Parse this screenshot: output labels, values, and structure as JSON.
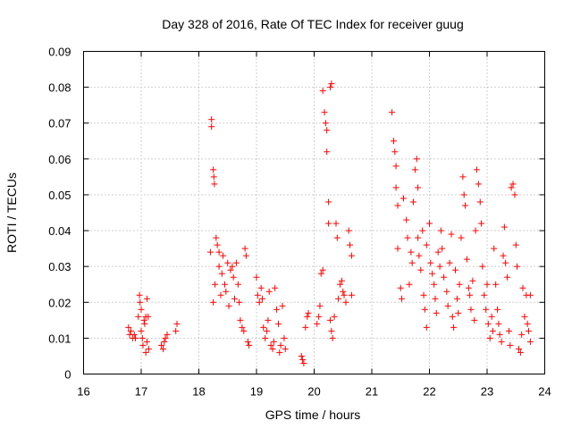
{
  "chart_data": {
    "type": "scatter",
    "title": "Day 328 of 2016, Rate Of TEC Index for receiver guug",
    "xlabel": "GPS time / hours",
    "ylabel": "ROTI / TECUs",
    "xlim": [
      16,
      24
    ],
    "ylim": [
      0,
      0.09
    ],
    "xticks": [
      16,
      17,
      18,
      19,
      20,
      21,
      22,
      23,
      24
    ],
    "xtick_labels": [
      "16",
      "17",
      "18",
      "19",
      "20",
      "21",
      "22",
      "23",
      "24"
    ],
    "yticks": [
      0,
      0.01,
      0.02,
      0.03,
      0.04,
      0.05,
      0.06,
      0.07,
      0.08,
      0.09
    ],
    "ytick_labels": [
      "0",
      "0.01",
      "0.02",
      "0.03",
      "0.04",
      "0.05",
      "0.06",
      "0.07",
      "0.08",
      "0.09"
    ],
    "grid": true,
    "marker": "+",
    "color": "#ff0000",
    "series": [
      {
        "name": "ROTI",
        "points": [
          [
            16.78,
            0.013
          ],
          [
            16.8,
            0.011
          ],
          [
            16.82,
            0.012
          ],
          [
            16.85,
            0.01
          ],
          [
            16.88,
            0.011
          ],
          [
            16.9,
            0.01
          ],
          [
            16.95,
            0.016
          ],
          [
            16.97,
            0.022
          ],
          [
            16.98,
            0.02
          ],
          [
            17.0,
            0.018
          ],
          [
            17.0,
            0.012
          ],
          [
            17.02,
            0.01
          ],
          [
            17.03,
            0.008
          ],
          [
            17.05,
            0.015
          ],
          [
            17.06,
            0.014
          ],
          [
            17.08,
            0.016
          ],
          [
            17.08,
            0.006
          ],
          [
            17.1,
            0.009
          ],
          [
            17.1,
            0.021
          ],
          [
            17.12,
            0.016
          ],
          [
            17.13,
            0.007
          ],
          [
            17.35,
            0.008
          ],
          [
            17.38,
            0.007
          ],
          [
            17.4,
            0.009
          ],
          [
            17.42,
            0.01
          ],
          [
            17.45,
            0.011
          ],
          [
            17.6,
            0.012
          ],
          [
            17.62,
            0.014
          ],
          [
            18.2,
            0.034
          ],
          [
            18.22,
            0.071
          ],
          [
            18.22,
            0.069
          ],
          [
            18.25,
            0.057
          ],
          [
            18.26,
            0.055
          ],
          [
            18.27,
            0.053
          ],
          [
            18.25,
            0.02
          ],
          [
            18.28,
            0.025
          ],
          [
            18.3,
            0.038
          ],
          [
            18.32,
            0.036
          ],
          [
            18.35,
            0.03
          ],
          [
            18.35,
            0.034
          ],
          [
            18.38,
            0.022
          ],
          [
            18.4,
            0.028
          ],
          [
            18.42,
            0.033
          ],
          [
            18.45,
            0.025
          ],
          [
            18.47,
            0.023
          ],
          [
            18.5,
            0.031
          ],
          [
            18.52,
            0.019
          ],
          [
            18.55,
            0.029
          ],
          [
            18.58,
            0.03
          ],
          [
            18.6,
            0.027
          ],
          [
            18.62,
            0.021
          ],
          [
            18.65,
            0.031
          ],
          [
            18.68,
            0.025
          ],
          [
            18.7,
            0.02
          ],
          [
            18.72,
            0.015
          ],
          [
            18.75,
            0.013
          ],
          [
            18.78,
            0.012
          ],
          [
            18.8,
            0.035
          ],
          [
            18.82,
            0.033
          ],
          [
            18.85,
            0.009
          ],
          [
            18.87,
            0.008
          ],
          [
            19.0,
            0.027
          ],
          [
            19.02,
            0.022
          ],
          [
            19.05,
            0.02
          ],
          [
            19.08,
            0.024
          ],
          [
            19.1,
            0.021
          ],
          [
            19.12,
            0.013
          ],
          [
            19.15,
            0.01
          ],
          [
            19.18,
            0.012
          ],
          [
            19.2,
            0.015
          ],
          [
            19.22,
            0.023
          ],
          [
            19.25,
            0.008
          ],
          [
            19.28,
            0.007
          ],
          [
            19.3,
            0.009
          ],
          [
            19.32,
            0.024
          ],
          [
            19.35,
            0.018
          ],
          [
            19.38,
            0.014
          ],
          [
            19.4,
            0.006
          ],
          [
            19.42,
            0.008
          ],
          [
            19.45,
            0.019
          ],
          [
            19.48,
            0.01
          ],
          [
            19.5,
            0.007
          ],
          [
            19.78,
            0.005
          ],
          [
            19.8,
            0.004
          ],
          [
            19.82,
            0.003
          ],
          [
            19.85,
            0.013
          ],
          [
            19.88,
            0.016
          ],
          [
            19.9,
            0.017
          ],
          [
            20.05,
            0.014
          ],
          [
            20.08,
            0.016
          ],
          [
            20.1,
            0.019
          ],
          [
            20.12,
            0.028
          ],
          [
            20.15,
            0.029
          ],
          [
            20.15,
            0.079
          ],
          [
            20.18,
            0.073
          ],
          [
            20.2,
            0.07
          ],
          [
            20.22,
            0.068
          ],
          [
            20.22,
            0.062
          ],
          [
            20.25,
            0.048
          ],
          [
            20.25,
            0.042
          ],
          [
            20.28,
            0.08
          ],
          [
            20.3,
            0.081
          ],
          [
            20.28,
            0.015
          ],
          [
            20.3,
            0.012
          ],
          [
            20.32,
            0.01
          ],
          [
            20.35,
            0.016
          ],
          [
            20.38,
            0.042
          ],
          [
            20.4,
            0.038
          ],
          [
            20.42,
            0.021
          ],
          [
            20.45,
            0.025
          ],
          [
            20.48,
            0.026
          ],
          [
            20.5,
            0.023
          ],
          [
            20.52,
            0.022
          ],
          [
            20.55,
            0.02
          ],
          [
            20.6,
            0.04
          ],
          [
            20.62,
            0.036
          ],
          [
            20.65,
            0.033
          ],
          [
            20.65,
            0.022
          ],
          [
            21.35,
            0.073
          ],
          [
            21.38,
            0.065
          ],
          [
            21.4,
            0.062
          ],
          [
            21.42,
            0.058
          ],
          [
            21.42,
            0.052
          ],
          [
            21.45,
            0.047
          ],
          [
            21.45,
            0.035
          ],
          [
            21.5,
            0.024
          ],
          [
            21.52,
            0.021
          ],
          [
            21.55,
            0.049
          ],
          [
            21.6,
            0.043
          ],
          [
            21.62,
            0.038
          ],
          [
            21.65,
            0.025
          ],
          [
            21.68,
            0.034
          ],
          [
            21.7,
            0.031
          ],
          [
            21.72,
            0.048
          ],
          [
            21.75,
            0.057
          ],
          [
            21.78,
            0.06
          ],
          [
            21.8,
            0.052
          ],
          [
            21.8,
            0.038
          ],
          [
            21.82,
            0.033
          ],
          [
            21.85,
            0.029
          ],
          [
            21.88,
            0.04
          ],
          [
            21.9,
            0.022
          ],
          [
            21.92,
            0.018
          ],
          [
            21.95,
            0.013
          ],
          [
            21.95,
            0.036
          ],
          [
            22.0,
            0.042
          ],
          [
            22.02,
            0.031
          ],
          [
            22.05,
            0.028
          ],
          [
            22.08,
            0.025
          ],
          [
            22.1,
            0.021
          ],
          [
            22.12,
            0.017
          ],
          [
            22.15,
            0.034
          ],
          [
            22.18,
            0.03
          ],
          [
            22.2,
            0.04
          ],
          [
            22.22,
            0.035
          ],
          [
            22.25,
            0.027
          ],
          [
            22.3,
            0.023
          ],
          [
            22.32,
            0.019
          ],
          [
            22.35,
            0.031
          ],
          [
            22.38,
            0.039
          ],
          [
            22.4,
            0.016
          ],
          [
            22.42,
            0.013
          ],
          [
            22.45,
            0.029
          ],
          [
            22.48,
            0.021
          ],
          [
            22.5,
            0.017
          ],
          [
            22.52,
            0.025
          ],
          [
            22.55,
            0.038
          ],
          [
            22.58,
            0.055
          ],
          [
            22.6,
            0.05
          ],
          [
            22.62,
            0.047
          ],
          [
            22.65,
            0.032
          ],
          [
            22.68,
            0.024
          ],
          [
            22.7,
            0.022
          ],
          [
            22.72,
            0.018
          ],
          [
            22.75,
            0.026
          ],
          [
            22.78,
            0.015
          ],
          [
            22.8,
            0.04
          ],
          [
            22.82,
            0.057
          ],
          [
            22.85,
            0.053
          ],
          [
            22.88,
            0.048
          ],
          [
            22.9,
            0.042
          ],
          [
            22.92,
            0.03
          ],
          [
            22.95,
            0.022
          ],
          [
            22.98,
            0.018
          ],
          [
            23.0,
            0.025
          ],
          [
            23.02,
            0.014
          ],
          [
            23.05,
            0.01
          ],
          [
            23.08,
            0.016
          ],
          [
            23.1,
            0.012
          ],
          [
            23.12,
            0.035
          ],
          [
            23.15,
            0.025
          ],
          [
            23.18,
            0.018
          ],
          [
            23.2,
            0.014
          ],
          [
            23.22,
            0.011
          ],
          [
            23.25,
            0.009
          ],
          [
            23.28,
            0.033
          ],
          [
            23.3,
            0.041
          ],
          [
            23.32,
            0.031
          ],
          [
            23.35,
            0.027
          ],
          [
            23.38,
            0.012
          ],
          [
            23.4,
            0.008
          ],
          [
            23.42,
            0.052
          ],
          [
            23.45,
            0.053
          ],
          [
            23.48,
            0.05
          ],
          [
            23.5,
            0.036
          ],
          [
            23.52,
            0.03
          ],
          [
            23.55,
            0.007
          ],
          [
            23.58,
            0.006
          ],
          [
            23.6,
            0.011
          ],
          [
            23.62,
            0.024
          ],
          [
            23.65,
            0.016
          ],
          [
            23.68,
            0.022
          ],
          [
            23.7,
            0.014
          ],
          [
            23.72,
            0.012
          ],
          [
            23.75,
            0.009
          ],
          [
            23.75,
            0.022
          ]
        ]
      }
    ]
  }
}
